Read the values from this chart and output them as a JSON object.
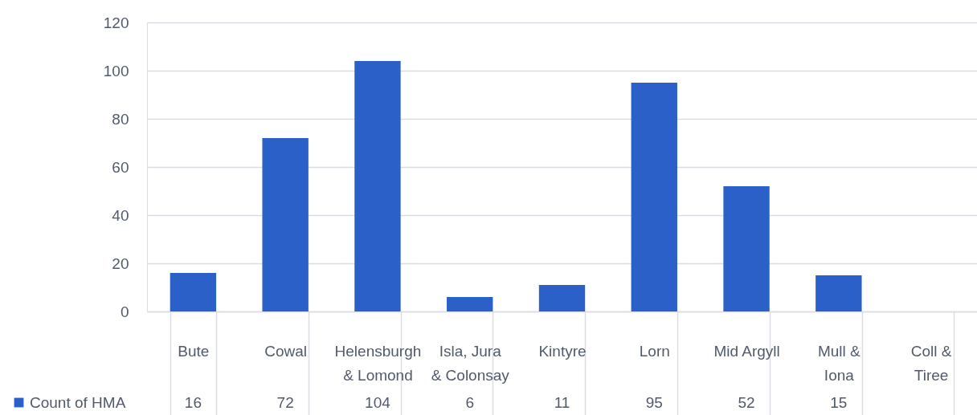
{
  "chart_data": {
    "type": "bar",
    "categories": [
      "Bute",
      "Cowal",
      "Helensburgh & Lomond",
      "Isla, Jura & Colonsay",
      "Kintyre",
      "Lorn",
      "Mid Argyll",
      "Mull & Iona",
      "Coll & Tiree"
    ],
    "series": [
      {
        "name": "Count of HMA",
        "color": "#2b60c8",
        "values": [
          16,
          72,
          104,
          6,
          11,
          95,
          52,
          15,
          null
        ]
      }
    ],
    "ylim": [
      0,
      120
    ],
    "yticks": [
      0,
      20,
      40,
      60,
      80,
      100,
      120
    ],
    "grid": "y",
    "legend": "bottom left",
    "data_labels": true
  }
}
